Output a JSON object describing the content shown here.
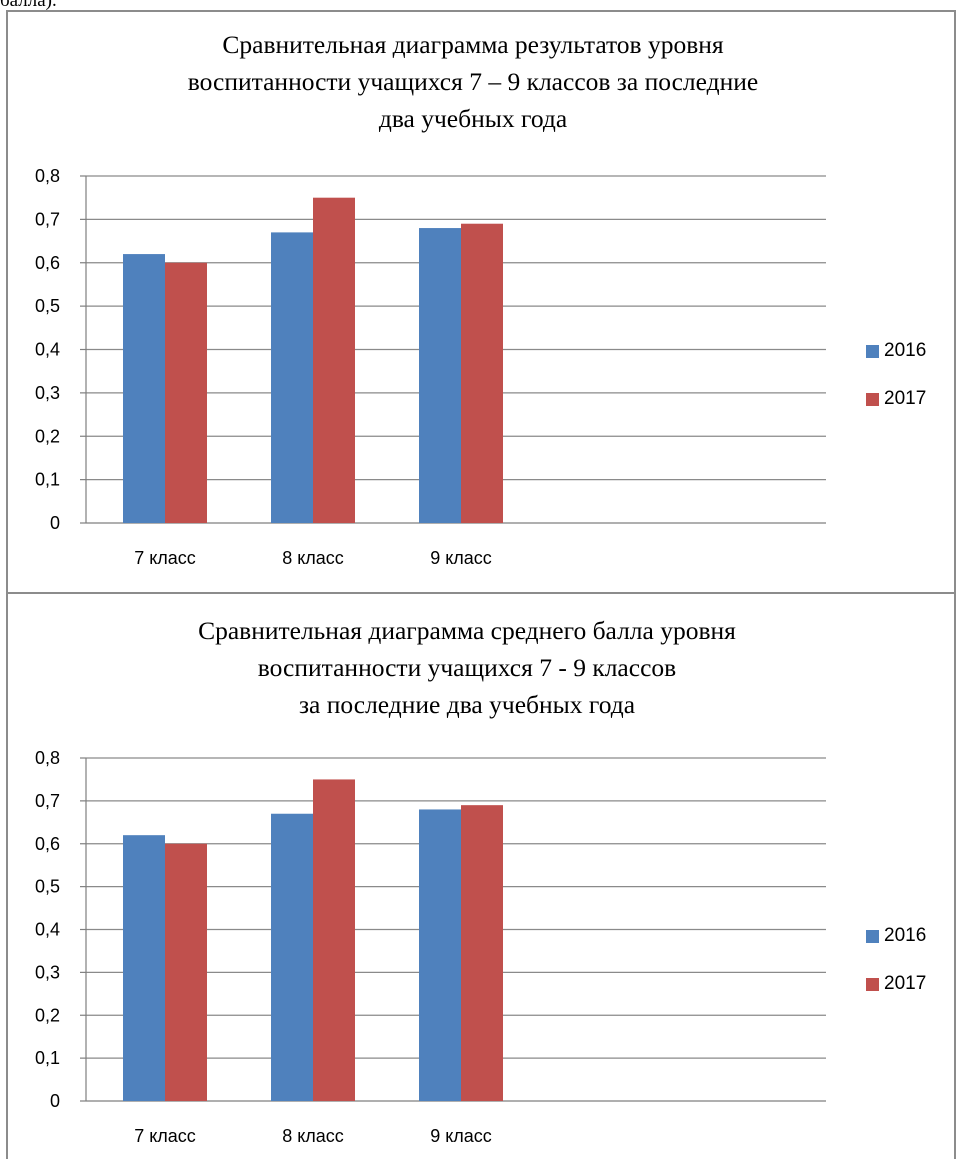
{
  "fragment_text": "балла).",
  "charts": [
    {
      "title_lines": [
        "Сравнительная диаграмма результатов уровня",
        "воспитанности учащихся 7 – 9 классов за последние",
        "два учебных года"
      ],
      "legend": {
        "series_2016": "2016",
        "series_2017": "2017"
      }
    },
    {
      "title_lines": [
        "Сравнительная диаграмма среднего балла уровня",
        "воспитанности учащихся 7 - 9 классов",
        "за последние два учебных года"
      ],
      "legend": {
        "series_2016": "2016",
        "series_2017": "2017"
      }
    }
  ],
  "chart_data": [
    {
      "type": "bar",
      "title": "Сравнительная диаграмма результатов уровня воспитанности учащихся 7 – 9 классов за последние два учебных года",
      "categories": [
        "7 класс",
        "8 класс",
        "9 класс"
      ],
      "series": [
        {
          "name": "2016",
          "values": [
            0.62,
            0.67,
            0.68
          ],
          "color": "#4f81bd"
        },
        {
          "name": "2017",
          "values": [
            0.6,
            0.75,
            0.69
          ],
          "color": "#c0504d"
        }
      ],
      "yticks": [
        "0",
        "0,1",
        "0,2",
        "0,3",
        "0,4",
        "0,5",
        "0,6",
        "0,7",
        "0,8"
      ],
      "ylim": [
        0,
        0.8
      ],
      "grid": true,
      "legend_position": "right",
      "xlabel": "",
      "ylabel": ""
    },
    {
      "type": "bar",
      "title": "Сравнительная диаграмма среднего балла уровня воспитанности учащихся 7 - 9 классов за последние два учебных года",
      "categories": [
        "7 класс",
        "8 класс",
        "9 класс"
      ],
      "series": [
        {
          "name": "2016",
          "values": [
            0.62,
            0.67,
            0.68
          ],
          "color": "#4f81bd"
        },
        {
          "name": "2017",
          "values": [
            0.6,
            0.75,
            0.69
          ],
          "color": "#c0504d"
        }
      ],
      "yticks": [
        "0",
        "0,1",
        "0,2",
        "0,3",
        "0,4",
        "0,5",
        "0,6",
        "0,7",
        "0,8"
      ],
      "ylim": [
        0,
        0.8
      ],
      "grid": true,
      "legend_position": "right",
      "xlabel": "",
      "ylabel": ""
    }
  ]
}
